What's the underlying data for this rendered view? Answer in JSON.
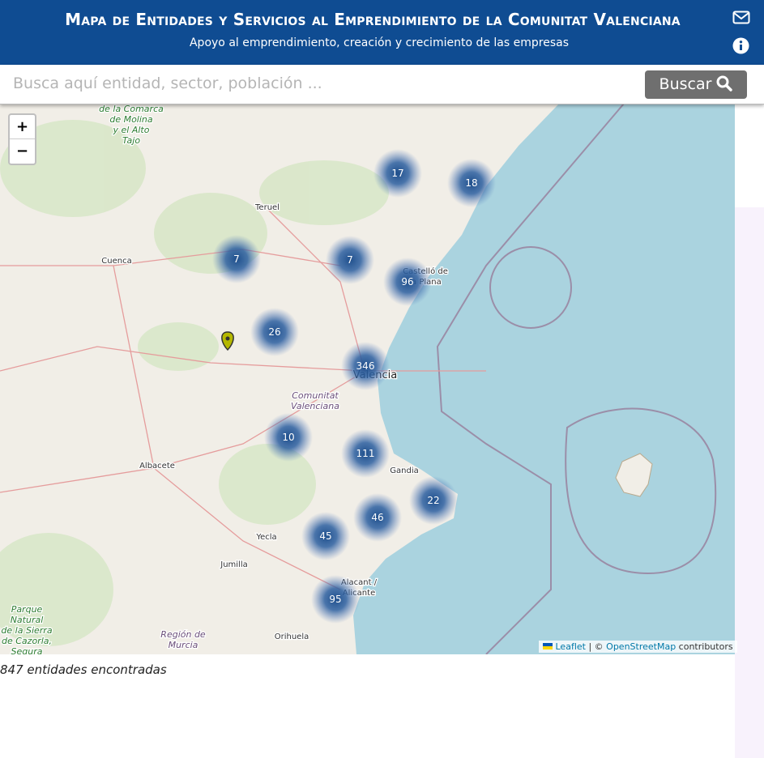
{
  "header": {
    "title": "Mapa de Entidades y Servicios al Emprendimiento de la Comunitat Valenciana",
    "subtitle": "Apoyo al emprendimiento, creación y crecimiento de las empresas"
  },
  "search": {
    "placeholder": "Busca aquí entidad, sector, población ...",
    "button": "Buscar"
  },
  "map": {
    "zoom_in": "+",
    "zoom_out": "−",
    "clusters": [
      17,
      18,
      7,
      7,
      96,
      26,
      346,
      10,
      111,
      22,
      46,
      45,
      95
    ],
    "places": [
      {
        "lines": [
          "de la Comarca",
          "de Molina",
          "y el Alto",
          "Tajo"
        ]
      },
      {
        "lines": [
          "Teruel"
        ]
      },
      {
        "lines": [
          "Cuenca"
        ]
      },
      {
        "lines": [
          "Castelló de",
          "la Plana"
        ]
      },
      {
        "lines": [
          "Valencia"
        ]
      },
      {
        "lines": [
          "Comunitat",
          "Valenciana"
        ]
      },
      {
        "lines": [
          "Albacete"
        ]
      },
      {
        "lines": [
          "Gandia"
        ]
      },
      {
        "lines": [
          "Yecla"
        ]
      },
      {
        "lines": [
          "Jumilla"
        ]
      },
      {
        "lines": [
          "Alacant /",
          "Alicante"
        ]
      },
      {
        "lines": [
          "Orihuela"
        ]
      },
      {
        "lines": [
          "Región de",
          "Murcia"
        ]
      },
      {
        "lines": [
          "Parque",
          "Natural",
          "de la Sierra",
          "de Cazorla,",
          "Segura"
        ]
      }
    ],
    "attribution": {
      "leaflet": "Leaflet",
      "sep": " | © ",
      "osm": "OpenStreetMap",
      "rest": " contributors"
    }
  },
  "footer": {
    "count": "847 entidades encontradas"
  }
}
